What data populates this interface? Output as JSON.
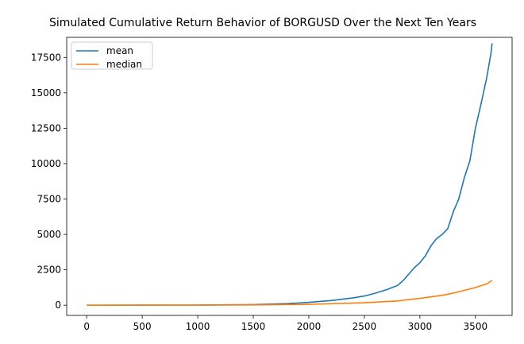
{
  "chart_data": {
    "type": "line",
    "title": "Simulated Cumulative Return Behavior of BORGUSD Over the Next Ten Years",
    "xlabel": "",
    "ylabel": "",
    "xlim": [
      -180,
      3830
    ],
    "ylim": [
      -720,
      18920
    ],
    "xticks": [
      0,
      500,
      1000,
      1500,
      2000,
      2500,
      3000,
      3500
    ],
    "yticks": [
      0,
      2500,
      5000,
      7500,
      10000,
      12500,
      15000,
      17500
    ],
    "grid": false,
    "legend": {
      "position": "top-left"
    },
    "series": [
      {
        "name": "mean",
        "color": "#1f77b4",
        "x": [
          0,
          500,
          1000,
          1500,
          1800,
          2000,
          2200,
          2400,
          2500,
          2600,
          2700,
          2800,
          2850,
          2900,
          2950,
          3000,
          3050,
          3100,
          3150,
          3200,
          3250,
          3300,
          3350,
          3400,
          3450,
          3500,
          3550,
          3600,
          3640,
          3650
        ],
        "y": [
          1,
          4,
          12,
          45,
          110,
          200,
          330,
          520,
          650,
          850,
          1100,
          1400,
          1750,
          2200,
          2650,
          3000,
          3500,
          4200,
          4700,
          5000,
          5400,
          6600,
          7500,
          9000,
          10200,
          12500,
          14200,
          16000,
          17800,
          18500
        ]
      },
      {
        "name": "median",
        "color": "#ff7f0e",
        "x": [
          0,
          500,
          1000,
          1500,
          2000,
          2500,
          2800,
          3000,
          3200,
          3300,
          3400,
          3500,
          3600,
          3650
        ],
        "y": [
          1,
          2,
          5,
          20,
          60,
          170,
          300,
          480,
          700,
          850,
          1050,
          1250,
          1500,
          1750
        ]
      }
    ]
  }
}
